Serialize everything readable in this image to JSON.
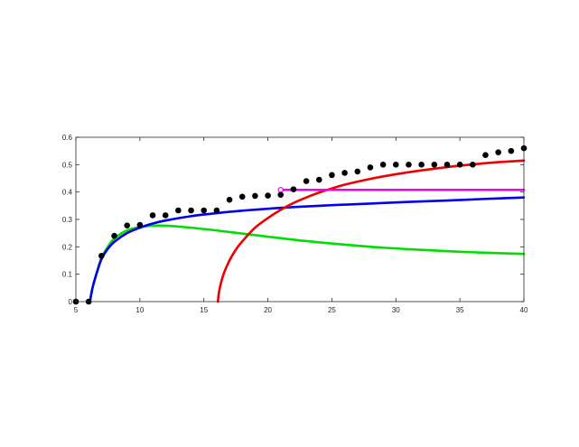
{
  "chart_data": {
    "type": "line",
    "title": "",
    "xlabel": "",
    "ylabel": "",
    "xlim": [
      5,
      40
    ],
    "ylim": [
      0,
      0.6
    ],
    "x_ticks": [
      5,
      10,
      15,
      20,
      25,
      30,
      35,
      40
    ],
    "y_ticks": [
      0,
      0.1,
      0.2,
      0.3,
      0.4,
      0.5,
      0.6
    ],
    "x_tick_labels": [
      "5",
      "10",
      "15",
      "20",
      "25",
      "30",
      "35",
      "40"
    ],
    "y_tick_labels": [
      "0",
      "0.1",
      "0.2",
      "0.3",
      "0.4",
      "0.5",
      "0.6"
    ],
    "grid": false,
    "legend": "none",
    "series": [
      {
        "kind": "scatter",
        "color": "#000000",
        "x": [
          5,
          6,
          7,
          8,
          9,
          10,
          11,
          12,
          13,
          14,
          15,
          16,
          17,
          18,
          19,
          20,
          21,
          22,
          23,
          24,
          25,
          26,
          27,
          28,
          29,
          30,
          31,
          32,
          33,
          34,
          35,
          36,
          37,
          38,
          39,
          40
        ],
        "y": [
          0,
          0,
          0.167,
          0.24,
          0.278,
          0.28,
          0.315,
          0.315,
          0.333,
          0.333,
          0.333,
          0.333,
          0.372,
          0.383,
          0.386,
          0.387,
          0.39,
          0.41,
          0.44,
          0.445,
          0.462,
          0.47,
          0.475,
          0.49,
          0.5,
          0.5,
          0.5,
          0.5,
          0.5,
          0.5,
          0.5,
          0.5,
          0.535,
          0.545,
          0.55,
          0.56
        ]
      },
      {
        "kind": "line",
        "color": "#00dd00",
        "x": [
          6.1,
          6.3,
          6.6,
          7,
          7.5,
          8,
          9,
          10,
          11,
          12,
          13,
          15,
          17,
          20,
          23,
          26,
          29,
          32,
          35,
          38,
          40
        ],
        "y": [
          0,
          0.05,
          0.1,
          0.16,
          0.2,
          0.23,
          0.26,
          0.272,
          0.277,
          0.277,
          0.274,
          0.265,
          0.254,
          0.237,
          0.221,
          0.208,
          0.197,
          0.189,
          0.182,
          0.177,
          0.174
        ]
      },
      {
        "kind": "line",
        "color": "#0000ee",
        "x": [
          6.1,
          6.3,
          6.6,
          7,
          7.5,
          8,
          9,
          10,
          11,
          12,
          14,
          16,
          18,
          20,
          22,
          25,
          28,
          31,
          34,
          37,
          40
        ],
        "y": [
          0,
          0.05,
          0.1,
          0.155,
          0.193,
          0.218,
          0.25,
          0.27,
          0.285,
          0.296,
          0.312,
          0.323,
          0.332,
          0.339,
          0.345,
          0.352,
          0.358,
          0.364,
          0.369,
          0.375,
          0.38
        ]
      },
      {
        "kind": "line",
        "color": "#ee0000",
        "x": [
          16.1,
          16.2,
          16.5,
          17,
          17.5,
          18,
          19,
          20,
          21,
          22,
          23,
          24,
          25,
          26,
          28,
          30,
          32,
          34,
          36,
          38,
          40
        ],
        "y": [
          0,
          0.04,
          0.095,
          0.15,
          0.19,
          0.22,
          0.27,
          0.305,
          0.335,
          0.36,
          0.38,
          0.398,
          0.413,
          0.427,
          0.448,
          0.465,
          0.479,
          0.491,
          0.501,
          0.509,
          0.515
        ]
      },
      {
        "kind": "line",
        "color": "#ee00ee",
        "marker_first": true,
        "x": [
          21,
          40
        ],
        "y": [
          0.408,
          0.408
        ]
      }
    ]
  }
}
